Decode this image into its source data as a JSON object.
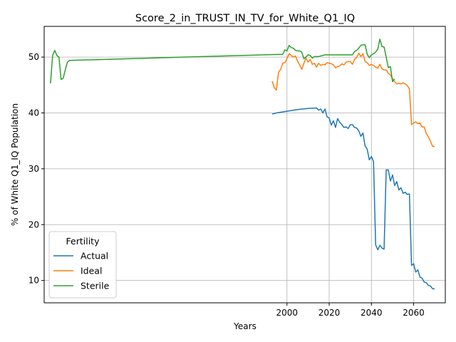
{
  "chart_data": {
    "type": "line",
    "title": "Score_2_in_TRUST_IN_TV_for_White_Q1_IQ",
    "xlabel": "Years",
    "ylabel": "% of White Q1_IQ Population",
    "xlim": [
      1885,
      2075
    ],
    "ylim": [
      6.0,
      55.5
    ],
    "xticks": [
      2000,
      2020,
      2040,
      2060
    ],
    "yticks": [
      10,
      20,
      30,
      40,
      50
    ],
    "grid": true,
    "legend": {
      "title": "Fertility",
      "position": "lower-left"
    },
    "series": [
      {
        "name": "Actual",
        "color": "#1f77b4",
        "x": [
          1993,
          1995,
          2000,
          2005,
          2010,
          2014,
          2015,
          2016,
          2017,
          2018,
          2019,
          2020,
          2021,
          2022,
          2023,
          2024,
          2025,
          2026,
          2027,
          2028,
          2029,
          2030,
          2031,
          2032,
          2033,
          2034,
          2035,
          2036,
          2037,
          2038,
          2039,
          2040,
          2041,
          2042,
          2043,
          2044,
          2045,
          2046,
          2047,
          2048,
          2049,
          2050,
          2051,
          2052,
          2053,
          2054,
          2055,
          2056,
          2057,
          2058,
          2059,
          2060,
          2061,
          2062,
          2063,
          2064,
          2065,
          2066,
          2067,
          2068,
          2069,
          2070
        ],
        "y": [
          39.8,
          40.0,
          40.3,
          40.6,
          40.8,
          40.9,
          40.5,
          40.7,
          40.0,
          40.7,
          39.3,
          39.1,
          37.8,
          38.6,
          37.4,
          39.0,
          38.3,
          37.9,
          37.4,
          37.5,
          37.2,
          37.9,
          37.9,
          37.4,
          37.3,
          36.8,
          35.8,
          36.4,
          34.1,
          33.5,
          31.6,
          32.2,
          31.3,
          16.4,
          15.5,
          16.3,
          15.8,
          15.6,
          29.8,
          29.8,
          27.8,
          28.9,
          27.0,
          27.7,
          26.2,
          26.6,
          25.6,
          25.8,
          25.4,
          25.5,
          12.7,
          13.0,
          11.5,
          11.9,
          10.6,
          10.4,
          9.7,
          9.6,
          9.1,
          9.0,
          8.5,
          8.5
        ]
      },
      {
        "name": "Ideal",
        "color": "#ff7f0e",
        "x": [
          1993,
          1994,
          1995,
          1996,
          1997,
          1998,
          1999,
          2000,
          2001,
          2002,
          2003,
          2004,
          2005,
          2006,
          2007,
          2008,
          2009,
          2010,
          2011,
          2012,
          2013,
          2014,
          2015,
          2016,
          2017,
          2018,
          2019,
          2020,
          2021,
          2022,
          2023,
          2024,
          2025,
          2026,
          2027,
          2028,
          2029,
          2030,
          2031,
          2032,
          2033,
          2034,
          2035,
          2036,
          2037,
          2038,
          2039,
          2040,
          2041,
          2042,
          2043,
          2044,
          2045,
          2046,
          2047,
          2048,
          2049,
          2050,
          2051,
          2052,
          2053,
          2054,
          2055,
          2056,
          2057,
          2058,
          2059,
          2060,
          2061,
          2062,
          2063,
          2064,
          2065,
          2066,
          2067,
          2068,
          2069,
          2070
        ],
        "y": [
          45.7,
          44.5,
          44.1,
          47.3,
          47.8,
          48.9,
          49.0,
          49.7,
          50.6,
          50.3,
          50.0,
          50.2,
          49.3,
          48.6,
          47.8,
          48.9,
          49.8,
          49.1,
          49.6,
          48.7,
          48.9,
          48.2,
          48.9,
          48.5,
          48.7,
          48.6,
          49.0,
          48.9,
          48.8,
          48.6,
          48.1,
          48.3,
          48.4,
          48.8,
          48.6,
          49.1,
          49.2,
          49.2,
          48.7,
          49.6,
          49.9,
          50.7,
          50.1,
          50.6,
          49.2,
          49.0,
          48.5,
          48.7,
          48.5,
          48.2,
          48.0,
          48.7,
          47.9,
          47.7,
          47.7,
          47.1,
          46.8,
          46.1,
          45.6,
          45.2,
          45.3,
          45.2,
          45.4,
          45.2,
          44.9,
          44.3,
          37.9,
          38.2,
          38.4,
          38.1,
          38.2,
          37.5,
          37.5,
          36.3,
          35.7,
          34.9,
          34.0,
          34.0
        ]
      },
      {
        "name": "Sterile",
        "color": "#2ca02c",
        "x": [
          1888,
          1889,
          1890,
          1891,
          1892,
          1893,
          1894,
          1895,
          1896,
          1897,
          1998,
          1999,
          2000,
          2001,
          2002,
          2003,
          2004,
          2005,
          2006,
          2007,
          2008,
          2009,
          2010,
          2011,
          2012,
          2013,
          2014,
          2015,
          2016,
          2017,
          2018,
          2019,
          2020,
          2021,
          2022,
          2023,
          2024,
          2025,
          2026,
          2027,
          2028,
          2029,
          2030,
          2031,
          2032,
          2033,
          2034,
          2035,
          2036,
          2037,
          2038,
          2039,
          2040,
          2041,
          2042,
          2043,
          2044,
          2045,
          2046,
          2047,
          2048,
          2049,
          2050,
          2051
        ],
        "y": [
          45.3,
          50.3,
          51.2,
          50.3,
          50.0,
          46.0,
          46.2,
          47.7,
          49.1,
          49.4,
          50.5,
          51.3,
          51.1,
          52.1,
          51.7,
          51.6,
          51.2,
          51.1,
          51.1,
          50.9,
          49.7,
          50.0,
          50.4,
          50.3,
          49.8,
          50.1,
          50.1,
          50.1,
          50.2,
          50.3,
          50.4,
          50.4,
          50.4,
          50.4,
          50.4,
          50.4,
          50.4,
          50.4,
          50.4,
          50.4,
          50.4,
          50.4,
          50.4,
          50.4,
          51.0,
          51.2,
          51.6,
          52.1,
          52.2,
          52.2,
          50.5,
          49.9,
          50.4,
          50.6,
          50.9,
          51.4,
          53.2,
          51.9,
          51.8,
          50.0,
          48.1,
          48.3,
          45.6,
          46.1
        ]
      }
    ]
  }
}
